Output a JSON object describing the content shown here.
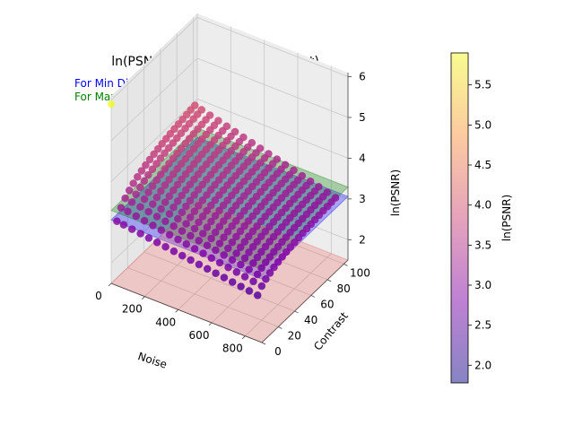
{
  "chart_data": {
    "type": "scatter",
    "projection": "3d",
    "title": "ln(PSNR) = f(Noise and Contrast)",
    "annotations": [
      {
        "text": "For Min Dice = 0.47, PSNR: ln(21.417)=3.06",
        "color": "#0000ff"
      },
      {
        "text": "For Max Dice = 0.97, PSNR: ln(26.949)=3.29",
        "color": "#008000"
      }
    ],
    "xlabel": "Noise",
    "ylabel": "Contrast",
    "zlabel": "ln(PSNR)",
    "xlim": [
      0,
      900
    ],
    "ylim": [
      0,
      105
    ],
    "zlim": [
      1.5,
      6.1
    ],
    "xticks": [
      "0",
      "200",
      "400",
      "600",
      "800"
    ],
    "yticks": [
      "0",
      "20",
      "40",
      "60",
      "80",
      "100"
    ],
    "zticks": [
      "2",
      "3",
      "4",
      "5",
      "6"
    ],
    "grid": true,
    "planes": [
      {
        "z": 3.06,
        "color": "#0000ff",
        "meaning": "Min Dice"
      },
      {
        "z": 3.29,
        "color": "#008000",
        "meaning": "Max Dice"
      },
      {
        "z": 1.5,
        "color": "#e06060",
        "meaning": "floor"
      }
    ],
    "noise_levels": [
      10,
      50,
      100,
      150,
      200,
      250,
      300,
      350,
      400,
      450,
      500,
      550,
      600,
      650,
      700,
      750,
      800,
      850
    ],
    "contrast_levels": [
      5,
      10,
      15,
      20,
      25,
      30,
      35,
      40,
      45,
      50,
      55,
      60,
      65,
      70,
      75,
      80,
      85,
      90,
      95,
      100
    ],
    "outlier": {
      "noise": 0,
      "contrast": 0,
      "value": 5.9
    },
    "colorbar": {
      "label": "ln(PSNR)",
      "colormap": "plasma",
      "alpha": 0.5,
      "min": 1.78,
      "max": 5.9,
      "ticks": [
        "2.0",
        "2.5",
        "3.0",
        "3.5",
        "4.0",
        "4.5",
        "5.0",
        "5.5"
      ]
    }
  }
}
